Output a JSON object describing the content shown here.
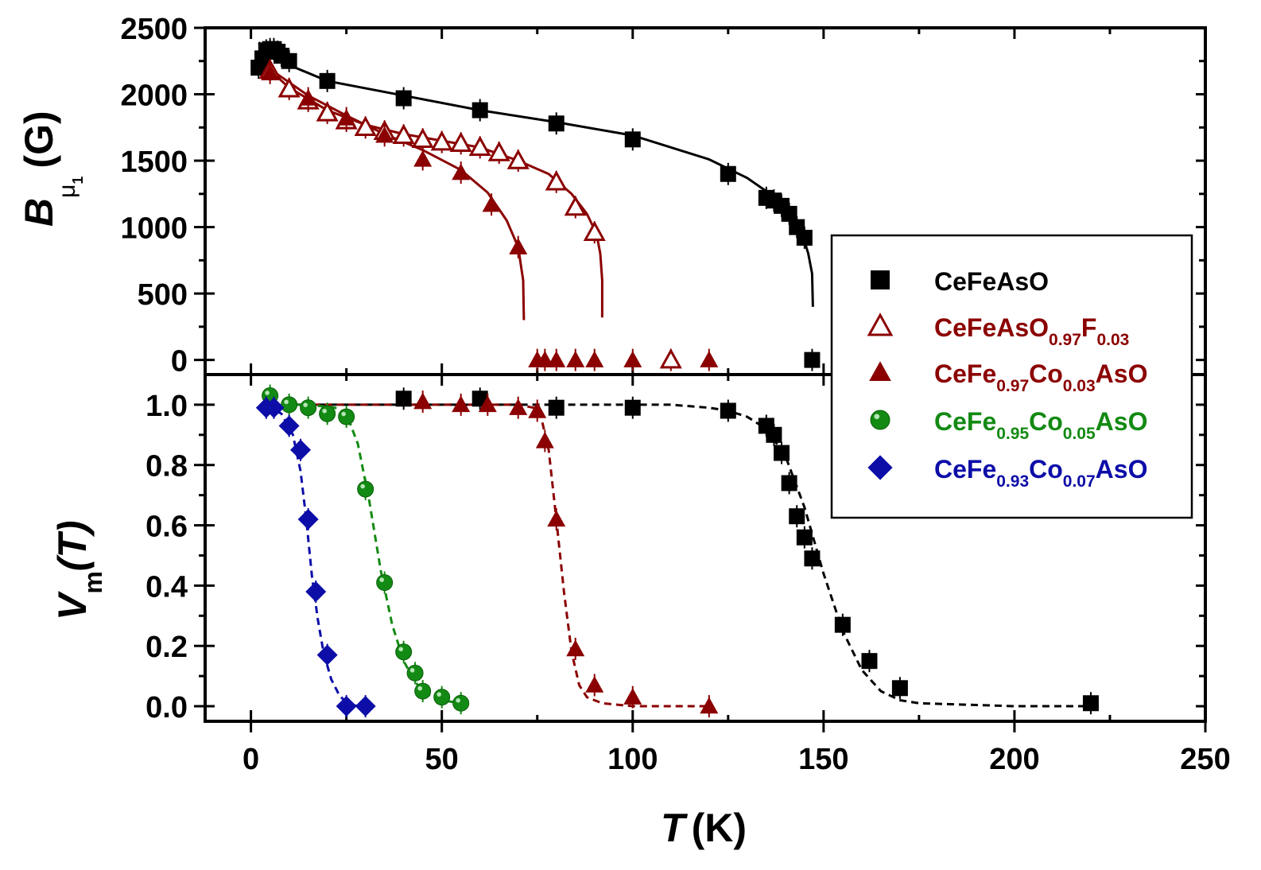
{
  "chart_data": [
    {
      "panel": "top",
      "type": "scatter",
      "xlabel": "T (K)",
      "ylabel": {
        "main": "B",
        "sub": "μ",
        "subsub": "1",
        "unit": "(G)"
      },
      "xlim": [
        -12,
        250
      ],
      "ylim": [
        -110,
        2500
      ],
      "x_ticks": [
        0,
        50,
        100,
        150,
        200,
        250
      ],
      "y_ticks": [
        0,
        500,
        1000,
        1500,
        2000,
        2500
      ],
      "y_tick_labels": [
        "0",
        "500",
        "1000",
        "1500",
        "2000",
        "2500"
      ],
      "series": [
        {
          "name": "CeFeAsO",
          "marker": "square",
          "color": "#000000",
          "points": [
            [
              2,
              2200
            ],
            [
              3,
              2270
            ],
            [
              4,
              2330
            ],
            [
              5,
              2340
            ],
            [
              6,
              2340
            ],
            [
              7,
              2320
            ],
            [
              8,
              2290
            ],
            [
              10,
              2250
            ],
            [
              20,
              2100
            ],
            [
              40,
              1970
            ],
            [
              60,
              1880
            ],
            [
              80,
              1780
            ],
            [
              100,
              1660
            ],
            [
              125,
              1400
            ],
            [
              135,
              1220
            ],
            [
              137,
              1200
            ],
            [
              139,
              1160
            ],
            [
              141,
              1100
            ],
            [
              143,
              1000
            ],
            [
              145,
              920
            ],
            [
              147,
              0
            ]
          ],
          "fit": [
            [
              2,
              2390
            ],
            [
              5,
              2330
            ],
            [
              10,
              2220
            ],
            [
              20,
              2100
            ],
            [
              40,
              1990
            ],
            [
              60,
              1880
            ],
            [
              80,
              1790
            ],
            [
              100,
              1690
            ],
            [
              120,
              1510
            ],
            [
              130,
              1370
            ],
            [
              137,
              1230
            ],
            [
              141,
              1120
            ],
            [
              144,
              990
            ],
            [
              146,
              800
            ],
            [
              147,
              650
            ],
            [
              147.2,
              400
            ]
          ],
          "fit_style": "solid"
        },
        {
          "name": "CeFeAsO0.97F0.03",
          "marker": "triangle-open",
          "color": "#8b0000",
          "points": [
            [
              5,
              2180
            ],
            [
              10,
              2040
            ],
            [
              15,
              1950
            ],
            [
              20,
              1860
            ],
            [
              25,
              1800
            ],
            [
              30,
              1750
            ],
            [
              35,
              1720
            ],
            [
              40,
              1690
            ],
            [
              45,
              1660
            ],
            [
              50,
              1640
            ],
            [
              55,
              1630
            ],
            [
              60,
              1600
            ],
            [
              65,
              1560
            ],
            [
              70,
              1500
            ],
            [
              80,
              1340
            ],
            [
              85,
              1150
            ],
            [
              90,
              960
            ],
            [
              110,
              0
            ]
          ],
          "fit": [
            [
              5,
              2180
            ],
            [
              10,
              2050
            ],
            [
              20,
              1880
            ],
            [
              30,
              1770
            ],
            [
              40,
              1700
            ],
            [
              50,
              1650
            ],
            [
              60,
              1600
            ],
            [
              70,
              1500
            ],
            [
              78,
              1400
            ],
            [
              84,
              1250
            ],
            [
              88,
              1100
            ],
            [
              90.5,
              950
            ],
            [
              91.5,
              800
            ],
            [
              92,
              600
            ],
            [
              92,
              320
            ]
          ],
          "fit_style": "solid"
        },
        {
          "name": "CeFe0.97Co0.03AsO",
          "marker": "triangle",
          "color": "#8b0000",
          "points": [
            [
              5,
              2160
            ],
            [
              15,
              1970
            ],
            [
              25,
              1820
            ],
            [
              35,
              1690
            ],
            [
              45,
              1510
            ],
            [
              55,
              1410
            ],
            [
              63,
              1170
            ],
            [
              70,
              850
            ],
            [
              75,
              0
            ],
            [
              77,
              0
            ],
            [
              80,
              0
            ],
            [
              85,
              0
            ],
            [
              90,
              0
            ],
            [
              100,
              0
            ],
            [
              120,
              0
            ]
          ],
          "fit": [
            [
              5,
              2190
            ],
            [
              15,
              1990
            ],
            [
              25,
              1840
            ],
            [
              35,
              1700
            ],
            [
              45,
              1580
            ],
            [
              55,
              1430
            ],
            [
              62,
              1260
            ],
            [
              67,
              1050
            ],
            [
              70,
              850
            ],
            [
              71.3,
              600
            ],
            [
              71.5,
              300
            ]
          ],
          "fit_style": "solid"
        }
      ]
    },
    {
      "panel": "bottom",
      "type": "scatter",
      "xlabel": "T (K)",
      "ylabel": {
        "main": "V",
        "sub": "m",
        "paren": "(T)"
      },
      "xlim": [
        -12,
        250
      ],
      "ylim": [
        -0.05,
        1.1
      ],
      "x_ticks": [
        0,
        50,
        100,
        150,
        200,
        250
      ],
      "x_tick_labels": [
        "0",
        "50",
        "100",
        "150",
        "200",
        "250"
      ],
      "y_ticks": [
        0,
        0.2,
        0.4,
        0.6,
        0.8,
        1.0
      ],
      "y_tick_labels": [
        "0.0",
        "0.2",
        "0.4",
        "0.6",
        "0.8",
        "1.0"
      ],
      "series": [
        {
          "name": "CeFeAsO",
          "marker": "square",
          "color": "#000000",
          "points": [
            [
              40,
              1.02
            ],
            [
              60,
              1.02
            ],
            [
              80,
              0.99
            ],
            [
              100,
              0.99
            ],
            [
              125,
              0.98
            ],
            [
              135,
              0.93
            ],
            [
              137,
              0.9
            ],
            [
              139,
              0.84
            ],
            [
              141,
              0.74
            ],
            [
              143,
              0.63
            ],
            [
              145,
              0.56
            ],
            [
              147,
              0.49
            ],
            [
              155,
              0.27
            ],
            [
              162,
              0.15
            ],
            [
              170,
              0.06
            ],
            [
              220,
              0.01
            ]
          ],
          "fit": [
            [
              5,
              1.0
            ],
            [
              80,
              1.0
            ],
            [
              110,
              1.0
            ],
            [
              120,
              0.99
            ],
            [
              125,
              0.98
            ],
            [
              130,
              0.96
            ],
            [
              135,
              0.92
            ],
            [
              140,
              0.83
            ],
            [
              145,
              0.66
            ],
            [
              150,
              0.44
            ],
            [
              155,
              0.25
            ],
            [
              160,
              0.12
            ],
            [
              165,
              0.05
            ],
            [
              170,
              0.02
            ],
            [
              175,
              0.01
            ],
            [
              200,
              0.0
            ],
            [
              220,
              0.0
            ]
          ],
          "fit_style": "dashed"
        },
        {
          "name": "CeFe0.97Co0.03AsO",
          "marker": "triangle",
          "color": "#8b0000",
          "points": [
            [
              45,
              1.01
            ],
            [
              55,
              1.0
            ],
            [
              62,
              1.0
            ],
            [
              70,
              0.99
            ],
            [
              75,
              0.98
            ],
            [
              77,
              0.88
            ],
            [
              80,
              0.62
            ],
            [
              85,
              0.19
            ],
            [
              90,
              0.07
            ],
            [
              100,
              0.03
            ],
            [
              120,
              0.0
            ]
          ],
          "fit": [
            [
              10,
              1.0
            ],
            [
              70,
              1.0
            ],
            [
              74,
              0.99
            ],
            [
              76,
              0.96
            ],
            [
              78,
              0.85
            ],
            [
              80,
              0.62
            ],
            [
              82,
              0.38
            ],
            [
              84,
              0.18
            ],
            [
              86,
              0.07
            ],
            [
              88,
              0.03
            ],
            [
              92,
              0.01
            ],
            [
              100,
              0.0
            ],
            [
              120,
              0.0
            ]
          ],
          "fit_style": "dashed"
        },
        {
          "name": "CeFe0.95Co0.05AsO",
          "marker": "circle",
          "color": "#138a13",
          "points": [
            [
              5,
              1.03
            ],
            [
              10,
              1.0
            ],
            [
              15,
              0.99
            ],
            [
              20,
              0.97
            ],
            [
              25,
              0.96
            ],
            [
              30,
              0.72
            ],
            [
              35,
              0.41
            ],
            [
              40,
              0.18
            ],
            [
              43,
              0.11
            ],
            [
              45,
              0.05
            ],
            [
              50,
              0.03
            ],
            [
              55,
              0.01
            ]
          ],
          "fit": [
            [
              5,
              1.0
            ],
            [
              15,
              1.0
            ],
            [
              22,
              0.99
            ],
            [
              25,
              0.97
            ],
            [
              28,
              0.87
            ],
            [
              31,
              0.68
            ],
            [
              34,
              0.45
            ],
            [
              37,
              0.27
            ],
            [
              40,
              0.15
            ],
            [
              43,
              0.08
            ],
            [
              46,
              0.04
            ],
            [
              50,
              0.02
            ],
            [
              55,
              0.01
            ]
          ],
          "fit_style": "dashed"
        },
        {
          "name": "CeFe0.93Co0.07AsO",
          "marker": "diamond",
          "color": "#0d0da8",
          "points": [
            [
              4,
              0.99
            ],
            [
              6,
              0.99
            ],
            [
              10,
              0.93
            ],
            [
              13,
              0.85
            ],
            [
              15,
              0.62
            ],
            [
              17,
              0.38
            ],
            [
              20,
              0.17
            ],
            [
              25,
              0.0
            ],
            [
              30,
              0.0
            ]
          ],
          "fit": [
            [
              4,
              1.0
            ],
            [
              8,
              0.97
            ],
            [
              11,
              0.9
            ],
            [
              13,
              0.78
            ],
            [
              14.5,
              0.62
            ],
            [
              16,
              0.43
            ],
            [
              17.5,
              0.29
            ],
            [
              19,
              0.18
            ],
            [
              21,
              0.09
            ],
            [
              23,
              0.04
            ],
            [
              25,
              0.01
            ],
            [
              28,
              0.0
            ]
          ],
          "fit_style": "dashed"
        }
      ]
    }
  ],
  "legend": {
    "placement": "right, between panels",
    "entries": [
      {
        "marker": "square",
        "color": "#000000",
        "label": {
          "base": "CeFeAsO"
        }
      },
      {
        "marker": "triangle-open",
        "color": "#8b0000",
        "label": {
          "p1": "CeFeAsO",
          "s1": "0.97",
          "p2": "F",
          "s2": "0.03",
          "p3": ""
        }
      },
      {
        "marker": "triangle",
        "color": "#8b0000",
        "label": {
          "p1": "CeFe",
          "s1": "0.97",
          "p2": "Co",
          "s2": "0.03",
          "p3": "AsO"
        }
      },
      {
        "marker": "circle",
        "color": "#138a13",
        "label": {
          "p1": "CeFe",
          "s1": "0.95",
          "p2": "Co",
          "s2": "0.05",
          "p3": "AsO"
        }
      },
      {
        "marker": "diamond",
        "color": "#0d0da8",
        "label": {
          "p1": "CeFe",
          "s1": "0.93",
          "p2": "Co",
          "s2": "0.07",
          "p3": "AsO"
        }
      }
    ]
  },
  "axis_labels": {
    "x_main": "T",
    "x_unit": "(K)"
  }
}
